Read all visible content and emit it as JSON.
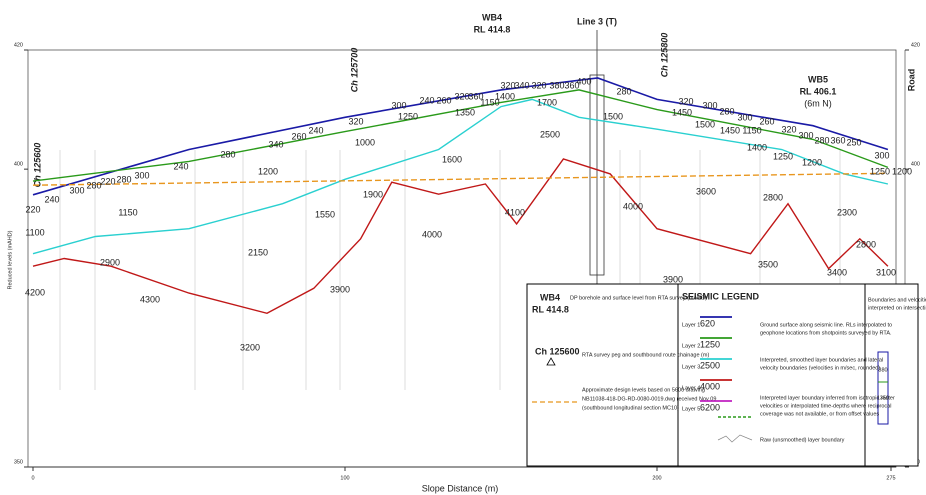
{
  "chart_data": {
    "type": "line",
    "x_label": "Slope Distance (m)",
    "y_label": "Reduced levels (mAHD)",
    "xlim": [
      0,
      275
    ],
    "xticks": [
      0,
      100,
      200,
      275
    ],
    "ylim": [
      350,
      420
    ],
    "yticks": [
      350,
      400,
      420
    ],
    "series": [
      {
        "color": "#1a1aa6",
        "x": [
          0,
          50,
          100,
          150,
          181,
          200,
          250,
          274
        ],
        "values": [
          395.7,
          403.3,
          408.7,
          413.3,
          415.3,
          411.7,
          407.3,
          403.3
        ]
      },
      {
        "color": "#2a9a1a",
        "x": [
          0,
          50,
          100,
          150,
          175,
          200,
          250,
          274
        ],
        "values": [
          398,
          401.3,
          406.3,
          411.2,
          413.3,
          410,
          405,
          400.3
        ]
      },
      {
        "color": "#2ad0d0",
        "x": [
          0,
          20,
          50,
          80,
          100,
          130,
          150,
          160,
          175,
          200,
          240,
          260,
          274
        ],
        "values": [
          385.8,
          388.7,
          390,
          394.2,
          398.3,
          403.3,
          410.5,
          411.7,
          408.7,
          406.7,
          403.3,
          399.2,
          397.5
        ]
      },
      {
        "color": "#c01818",
        "x": [
          0,
          10,
          25,
          50,
          75,
          90,
          105,
          115,
          130,
          145,
          155,
          170,
          185,
          200,
          230,
          242,
          255,
          265,
          274
        ],
        "values": [
          383.7,
          385,
          383.7,
          379.2,
          375.8,
          380,
          388.3,
          397.8,
          395.8,
          397.5,
          390.8,
          401.7,
          399.2,
          390,
          385.8,
          394.2,
          383.3,
          388.3,
          383.7
        ]
      },
      {
        "color": "#e8961e",
        "dashed": true,
        "x": [
          0,
          274
        ],
        "values": [
          397.3,
          399.3
        ]
      }
    ],
    "velocity_labels": [
      220,
      240,
      300,
      280,
      220,
      280,
      300,
      240,
      280,
      340,
      260,
      240,
      320,
      300,
      240,
      260,
      320,
      360,
      320,
      340,
      320,
      380,
      360,
      400,
      280,
      320,
      300,
      280,
      300,
      260,
      320,
      300,
      280,
      360,
      250,
      300,
      1100,
      1150,
      2900,
      4200,
      4300,
      2150,
      3900,
      3200,
      1550,
      1200,
      1000,
      1900,
      4000,
      1600,
      1250,
      1350,
      1150,
      1700,
      1400,
      4100,
      2500,
      4000,
      1500,
      1450,
      1500,
      1450,
      1150,
      3600,
      3900,
      2800,
      1400,
      1250,
      1200,
      2300,
      2800,
      3500,
      3400,
      3100,
      1250,
      1200
    ],
    "annotations": {
      "wb4": "WB4",
      "wb4_rl": "RL 414.8",
      "line3": "Line 3 (T)",
      "wb5": "WB5",
      "wb5_rl": "RL 406.1",
      "wb5_note": "(6m N)",
      "road": "Road",
      "ch1": "Ch 125600",
      "ch2": "Ch 125700",
      "ch3": "Ch 125800"
    },
    "legend": {
      "wb": "WB4",
      "wb_rl": "RL 414.8",
      "wb_text": "DP borehole and surface level from RTA survey (mAHD)",
      "ch": "Ch 125600",
      "ch_text": "RTA survey peg and southbound route chainage (m)",
      "design_text": [
        "Approximate design levels based on 5600 drawing",
        "NB11038-418-DG-RD-0080-0019.dwg received Nov 09",
        "(southbound longitudinal section MC10)"
      ],
      "title": "SEISMIC LEGEND",
      "layers": [
        {
          "label": "Layer 1",
          "velocity": 620,
          "color": "#1a1aa6"
        },
        {
          "label": "Layer 2",
          "velocity": 1250,
          "color": "#2a9a1a"
        },
        {
          "label": "Layer 3",
          "velocity": 2500,
          "color": "#2ad0d0"
        },
        {
          "label": "Layer 4",
          "velocity": 4000,
          "color": "#c01818"
        },
        {
          "label": "Layer 5",
          "velocity": 6200,
          "color": "#c020c0"
        }
      ],
      "desc1": [
        "Ground surface along seismic line.  RLs interpolated to",
        "geophone locations from shotpoints surveyed by RTA."
      ],
      "desc2": [
        "Interpreted, smoothed layer boundaries and lateral",
        "velocity boundaries (velocities in m/sec, rounded)"
      ],
      "desc3": [
        "Interpreted layer boundary inferred from isotropic raster",
        "velocities or interpolated time-depths where reciprocal",
        "coverage was not available, or from offset values"
      ],
      "desc4": "Raw (unsmoothed) layer boundary",
      "intersect": [
        "Boundaries and velocities",
        "interpreted on intersecting line"
      ],
      "intersect_v1": 380,
      "intersect_v2": 1350
    }
  }
}
